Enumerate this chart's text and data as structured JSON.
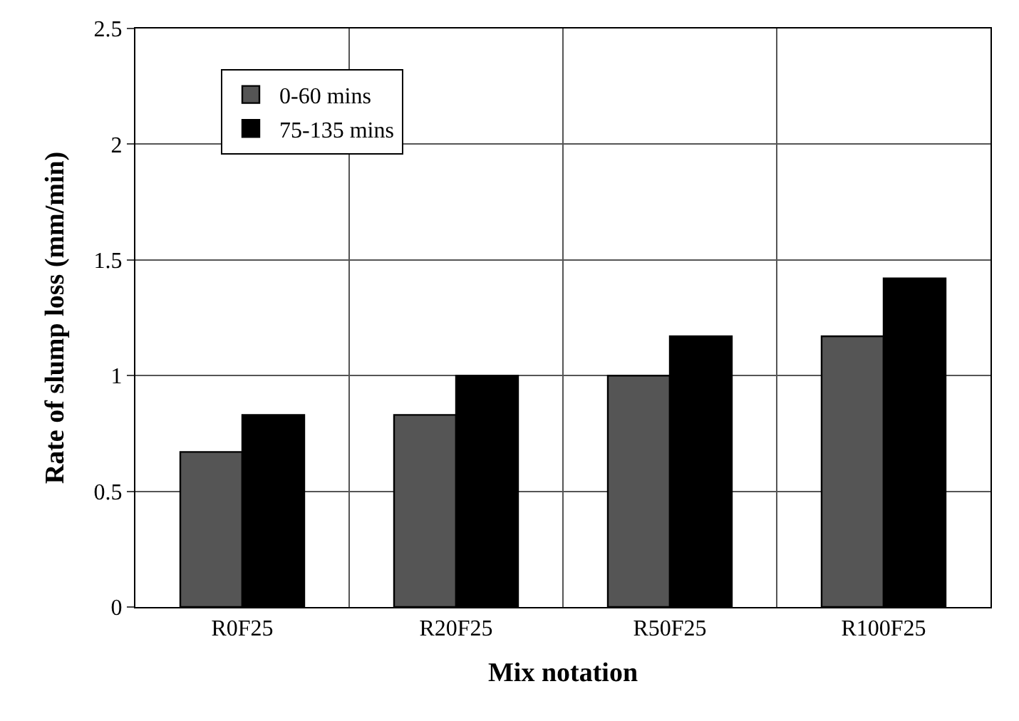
{
  "chart_data": {
    "type": "bar",
    "xlabel": "Mix notation",
    "ylabel": "Rate of slump loss (mm/min)",
    "categories": [
      "R0F25",
      "R20F25",
      "R50F25",
      "R100F25"
    ],
    "series": [
      {
        "name": "0-60 mins",
        "color": "#555555",
        "values": [
          0.67,
          0.83,
          1.0,
          1.17
        ]
      },
      {
        "name": "75-135 mins",
        "color": "#000000",
        "values": [
          0.83,
          1.0,
          1.17,
          1.42
        ]
      }
    ],
    "ylim": [
      0,
      2.5
    ],
    "yticks": [
      0,
      0.5,
      1,
      1.5,
      2,
      2.5
    ],
    "grid": true,
    "legend": "top left"
  }
}
